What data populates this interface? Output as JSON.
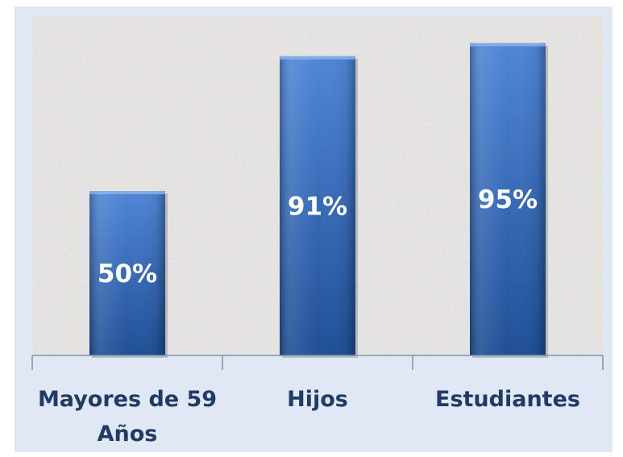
{
  "chart_data": {
    "type": "bar",
    "categories": [
      [
        "Mayores de 59",
        "Años"
      ],
      [
        "Hijos"
      ],
      [
        "Estudiantes"
      ]
    ],
    "values": [
      50,
      91,
      95
    ],
    "data_labels": [
      "50%",
      "91%",
      "95%"
    ],
    "title": "",
    "xlabel": "",
    "ylabel": "",
    "ylim": [
      0,
      100
    ],
    "grid": false,
    "legend": "none",
    "colors": {
      "bar": "#3a6fbf",
      "bar_light": "#4f86d6",
      "bar_dark": "#1f4f96",
      "plot_background": "#ecebe8",
      "frame_background": "#dfe8f3",
      "axis": "#7f93ad",
      "tick_label": "#1f3b66",
      "data_label": "#ffffff"
    }
  }
}
